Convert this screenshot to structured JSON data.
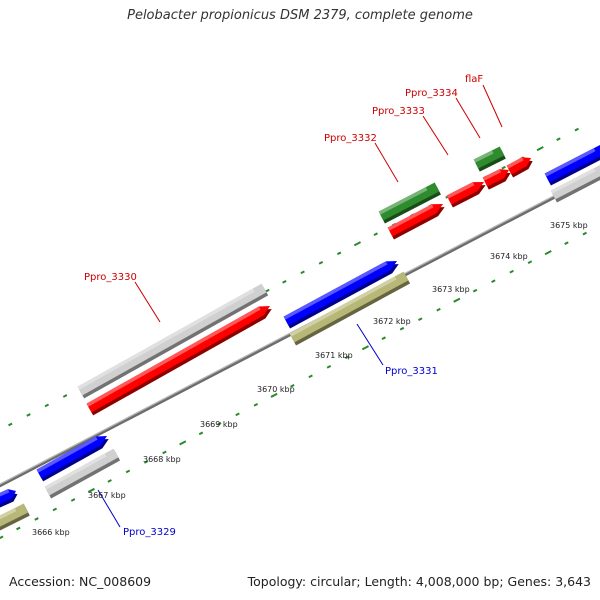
{
  "title": "Pelobacter propionicus DSM 2379, complete genome",
  "footer": {
    "accession": "Accession: NC_008609",
    "summary": "Topology: circular; Length: 4,008,000 bp; Genes: 3,643"
  },
  "colors": {
    "forward_cds": "#ff0000",
    "reverse_cds": "#0000ff",
    "rna": "#2e8b2e",
    "pseudo_gene": "#d0d0d0",
    "olive_feature": "#b7b777",
    "backbone": "#8a8a8a",
    "tick": "#2a8a2a",
    "forward_label": "#cc0000",
    "reverse_label": "#0000cc"
  },
  "tick_labels": [
    "3666 kbp",
    "3667 kbp",
    "3668 kbp",
    "3669 kbp",
    "3670 kbp",
    "3671 kbp",
    "3672 kbp",
    "3673 kbp",
    "3674 kbp",
    "3675 kbp"
  ],
  "gene_labels": {
    "forward": [
      "Ppro_3330",
      "Ppro_3332",
      "Ppro_3333",
      "Ppro_3334",
      "flaF"
    ],
    "reverse": [
      "Ppro_3329",
      "Ppro_3331"
    ]
  }
}
